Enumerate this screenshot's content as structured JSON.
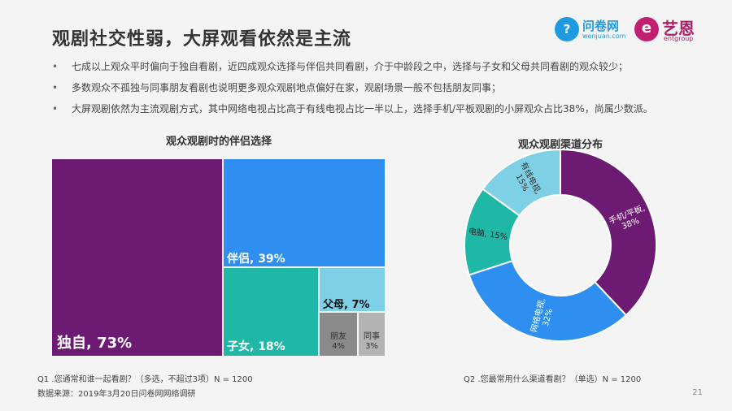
{
  "header": {
    "title": "观剧社交性弱，大屏观看依然是主流",
    "logo_wenjuan": "问卷网",
    "logo_wenjuan_sub": "wenjuan.com",
    "logo_yien": "艺恩",
    "logo_yien_sub": "entgroup"
  },
  "bullets": [
    "七成以上观众平时偏向于独自看剧，近四成观众选择与伴侣共同看剧，介于中龄段之中，选择与子女和父母共同看剧的观众较少；",
    "多数观众不孤独与同事朋友看剧也说明更多观众观剧地点偏好在家，观剧场景一般不包括朋友同事；",
    "大屏观剧依然为主流观剧方式，其中网络电视占比高于有线电视占比一半以上，选择手机/平板观剧的小屏观众占比38%，尚属少数派。"
  ],
  "colors": {
    "purple": "#6d1a72",
    "blue": "#2e8ff0",
    "teal": "#1fb8a6",
    "lightblue": "#7ed0e6",
    "gray": "#8a8a8a",
    "lightgray": "#b3b3b3"
  },
  "chart_data": [
    {
      "type": "treemap",
      "title": "观众观剧时的伴侣选择",
      "categories": [
        "独自",
        "伴侣",
        "子女",
        "父母",
        "朋友",
        "同事"
      ],
      "values": [
        73,
        39,
        18,
        7,
        4,
        3
      ],
      "labels": [
        "独自, 73%",
        "伴侣, 39%",
        "子女, 18%",
        "父母, 7%",
        "朋友\n4%",
        "同事\n3%"
      ],
      "unit": "%"
    },
    {
      "type": "pie",
      "title": "观众观剧渠道分布",
      "categories": [
        "手机/平板",
        "网络电视",
        "电脑",
        "有线电视"
      ],
      "values": [
        38,
        32,
        15,
        15
      ],
      "labels": [
        "手机/平板,\n38%",
        "网络电视,\n32%",
        "电脑, 15%",
        "有线电视,\n15%"
      ],
      "unit": "%"
    }
  ],
  "footnotes": {
    "q1": "Q1 .您通常和谁一起看剧？（多选，不超过3项）N = 1200",
    "source": "数据来源：2019年3月20日问卷网网络调研",
    "q2": "Q2 .您最常用什么渠道看剧？（单选）N = 1200"
  },
  "page_number": "21"
}
